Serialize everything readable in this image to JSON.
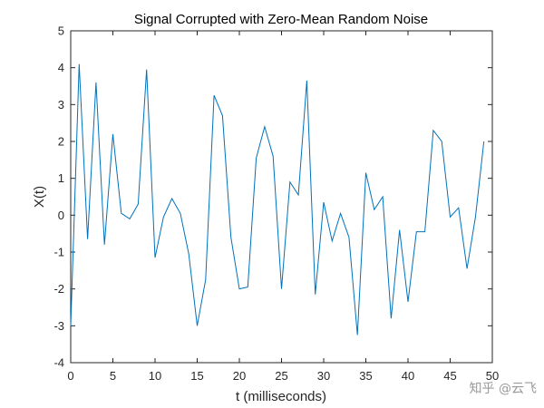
{
  "chart_data": {
    "type": "line",
    "title": "Signal Corrupted with Zero-Mean Random Noise",
    "xlabel": "t (milliseconds)",
    "ylabel": "X(t)",
    "xlim": [
      0,
      50
    ],
    "ylim": [
      -4,
      5
    ],
    "xticks": [
      "0",
      "5",
      "10",
      "15",
      "20",
      "25",
      "30",
      "35",
      "40",
      "45",
      "50"
    ],
    "yticks": [
      "-4",
      "-3",
      "-2",
      "-1",
      "0",
      "1",
      "2",
      "3",
      "4",
      "5"
    ],
    "grid": false,
    "series": [
      {
        "color": "#0072BD",
        "x": [
          0,
          1,
          2,
          3,
          4,
          5,
          6,
          7,
          8,
          9,
          10,
          11,
          12,
          13,
          14,
          15,
          16,
          17,
          18,
          19,
          20,
          21,
          22,
          23,
          24,
          25,
          26,
          27,
          28,
          29,
          30,
          31,
          32,
          33,
          34,
          35,
          36,
          37,
          38,
          39,
          40,
          41,
          42,
          43,
          44,
          45,
          46,
          47,
          48,
          49
        ],
        "values": [
          -3.0,
          4.1,
          -0.65,
          3.6,
          -0.8,
          2.2,
          0.05,
          -0.1,
          0.3,
          3.95,
          -1.15,
          -0.05,
          0.45,
          0.05,
          -1.05,
          -3.0,
          -1.75,
          3.25,
          2.7,
          -0.6,
          -2.0,
          -1.95,
          1.55,
          2.4,
          1.6,
          -2.0,
          0.9,
          0.55,
          3.65,
          -2.15,
          0.35,
          -0.7,
          0.05,
          -0.6,
          -3.25,
          1.15,
          0.15,
          0.5,
          -2.8,
          -0.4,
          -2.35,
          -0.45,
          -0.45,
          2.3,
          2.0,
          -0.05,
          0.2,
          -1.45,
          -0.05,
          2.0
        ]
      }
    ]
  },
  "watermark": {
    "text": "知乎 @云飞"
  }
}
